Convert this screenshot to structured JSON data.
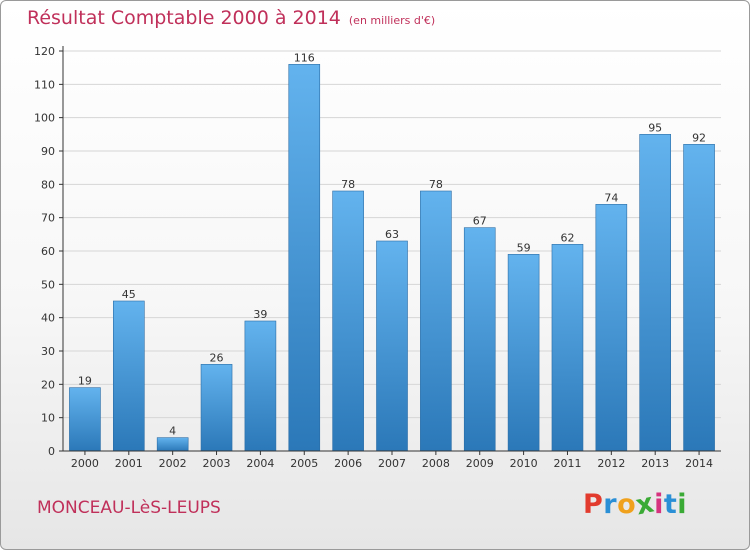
{
  "header": {
    "title": "Résultat Comptable 2000 à 2014",
    "subtitle": "(en milliers d'€)"
  },
  "footer": {
    "town": "MONCEAU-LèS-LEUPS",
    "brand": "Proxiti"
  },
  "colors": {
    "title": "#c0305a",
    "bar_light": "#63b3ee",
    "bar_dark": "#2b78b8",
    "grid": "#d6d6d6",
    "axis": "#333333"
  },
  "chart_data": {
    "type": "bar",
    "title": "Résultat Comptable 2000 à 2014",
    "subtitle": "(en milliers d'€)",
    "xlabel": "",
    "ylabel": "",
    "categories": [
      "2000",
      "2001",
      "2002",
      "2003",
      "2004",
      "2005",
      "2006",
      "2007",
      "2008",
      "2009",
      "2010",
      "2011",
      "2012",
      "2013",
      "2014"
    ],
    "values": [
      19,
      45,
      4,
      26,
      39,
      116,
      78,
      63,
      78,
      67,
      59,
      62,
      74,
      95,
      92
    ],
    "ylim": [
      0,
      120
    ],
    "yticks": [
      0,
      10,
      20,
      30,
      40,
      50,
      60,
      70,
      80,
      90,
      100,
      110,
      120
    ],
    "grid": true,
    "legend": "none"
  }
}
